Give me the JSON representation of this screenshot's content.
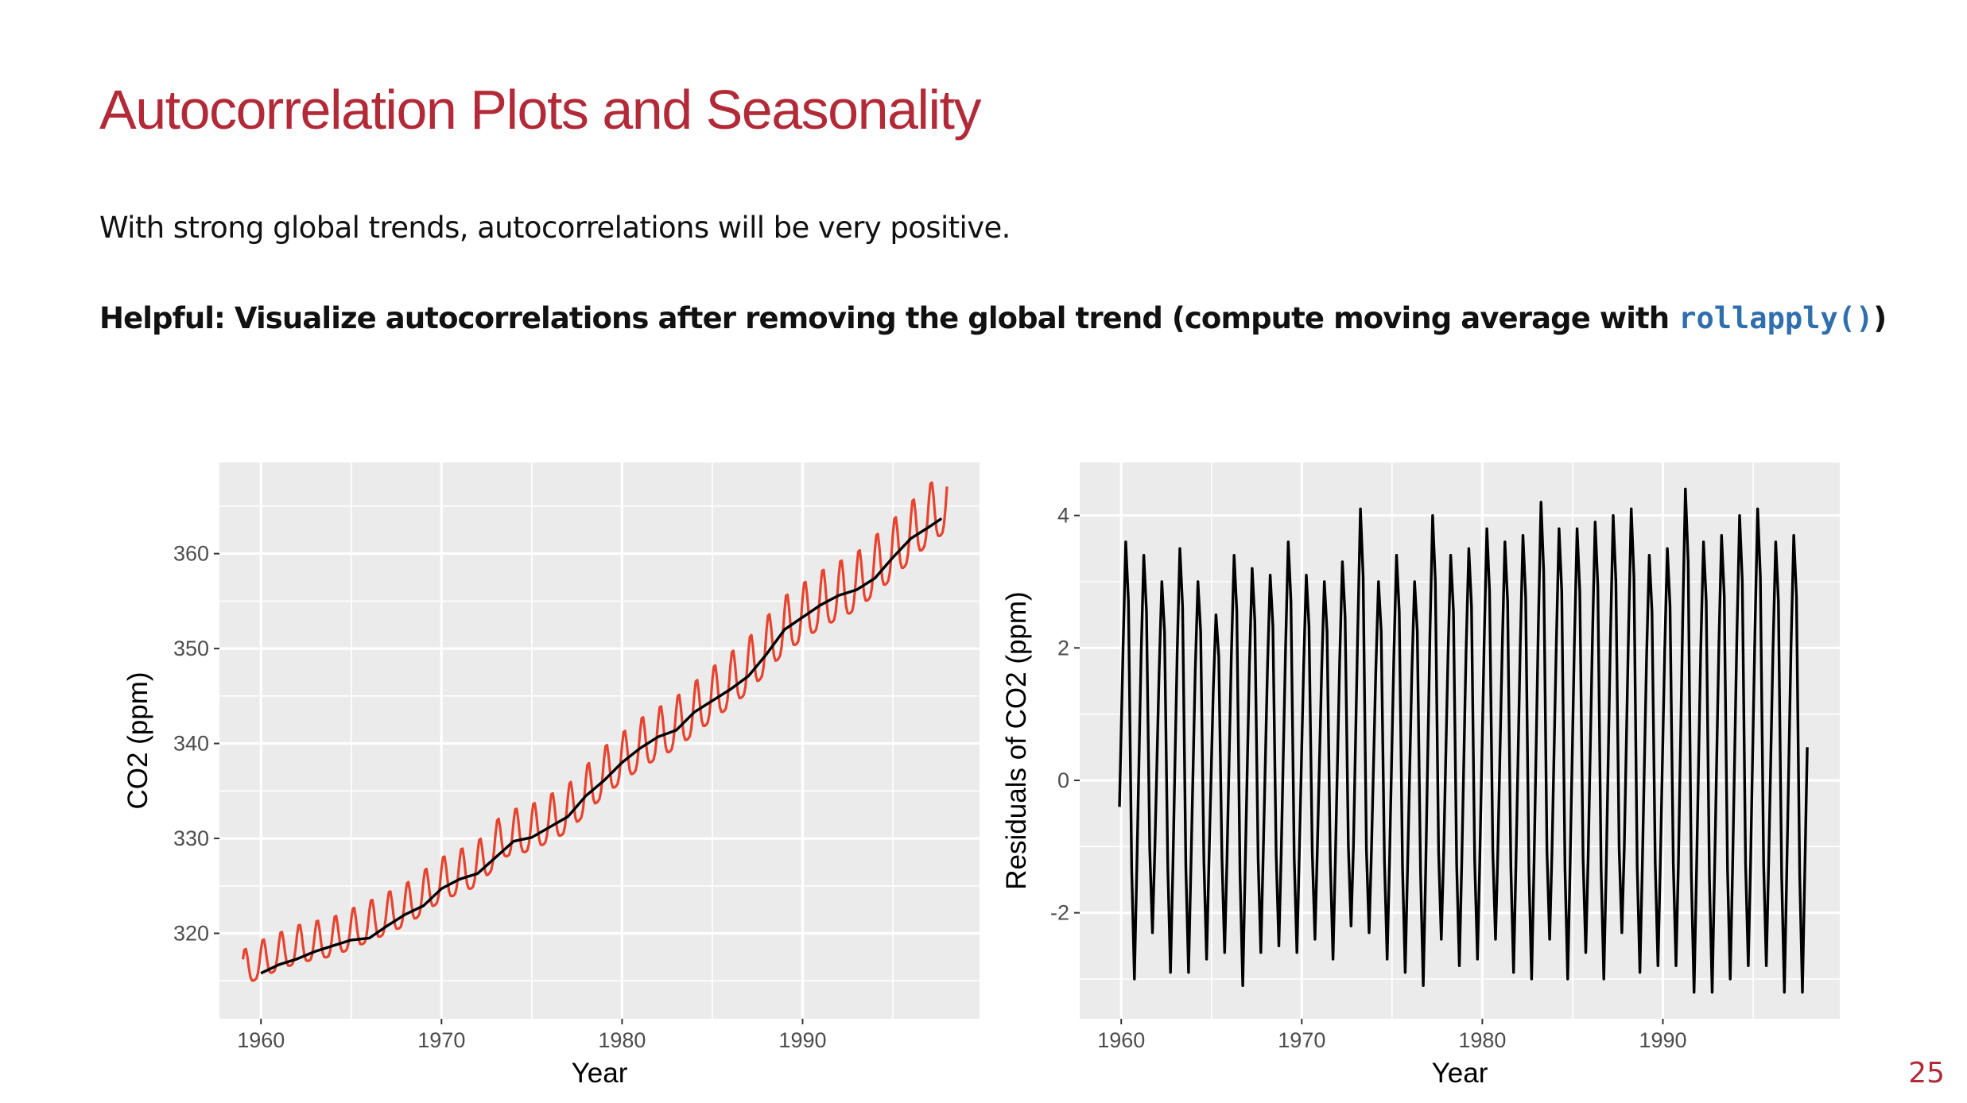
{
  "slide": {
    "title": "Autocorrelation Plots and Seasonality",
    "line1": "With strong global trends, autocorrelations will be very positive.",
    "helpful_text": "Helpful: Visualize autocorrelations after removing the global trend (compute moving average with ",
    "helpful_code": "rollapply()",
    "helpful_end": ")",
    "page_number": "25"
  },
  "colors": {
    "title": "#b22a38",
    "code": "#2f6fad",
    "panel_background": "#ebebeb",
    "raw_series": "#e8432e",
    "smooth_series": "#000000",
    "residual_series": "#000000"
  },
  "chart_data": [
    {
      "type": "line",
      "xlabel": "Year",
      "ylabel": "CO2 (ppm)",
      "xlim": [
        1957.7,
        1999.8
      ],
      "ylim": [
        311.0,
        369.6
      ],
      "x_ticks": [
        1960,
        1970,
        1980,
        1990
      ],
      "y_ticks": [
        320,
        330,
        340,
        350,
        360
      ],
      "grid": true,
      "legend": "none",
      "series": [
        {
          "role": "monthly",
          "color": "#e8432e",
          "x_start": 1959.0,
          "x_step": 0.0833333,
          "trend": [
            [
              1959,
              315.9
            ],
            [
              1960,
              316.9
            ],
            [
              1962,
              318.4
            ],
            [
              1964,
              319.2
            ],
            [
              1966,
              320.8
            ],
            [
              1968,
              322.5
            ],
            [
              1970,
              325.2
            ],
            [
              1972,
              326.8
            ],
            [
              1973.5,
              329.9
            ],
            [
              1975,
              330.6
            ],
            [
              1977,
              332.6
            ],
            [
              1979,
              336.5
            ],
            [
              1981,
              339.4
            ],
            [
              1983,
              341.6
            ],
            [
              1985,
              344.6
            ],
            [
              1987,
              347.6
            ],
            [
              1989,
              351.9
            ],
            [
              1991,
              354.5
            ],
            [
              1993,
              356.4
            ],
            [
              1995,
              359.8
            ],
            [
              1997,
              363.5
            ],
            [
              1998,
              364.8
            ]
          ],
          "seasonal_amplitude": [
            [
              1959,
              2.4
            ],
            [
              1970,
              2.9
            ],
            [
              1980,
              3.3
            ],
            [
              1990,
              3.8
            ],
            [
              1998,
              4.0
            ]
          ],
          "seasonal_phase_months": 1.5
        },
        {
          "role": "moving-average",
          "color": "#000000",
          "points": [
            [
              1960.0,
              315.8
            ],
            [
              1961,
              316.7
            ],
            [
              1962,
              317.3
            ],
            [
              1963,
              318.1
            ],
            [
              1964,
              318.7
            ],
            [
              1965,
              319.3
            ],
            [
              1966,
              319.5
            ],
            [
              1967,
              320.8
            ],
            [
              1968,
              322.0
            ],
            [
              1969,
              322.9
            ],
            [
              1970,
              324.7
            ],
            [
              1971,
              325.7
            ],
            [
              1972,
              326.3
            ],
            [
              1973,
              328.0
            ],
            [
              1974,
              329.7
            ],
            [
              1975,
              330.1
            ],
            [
              1976,
              331.2
            ],
            [
              1977,
              332.3
            ],
            [
              1978,
              334.5
            ],
            [
              1979,
              336.1
            ],
            [
              1980,
              338.0
            ],
            [
              1981,
              339.5
            ],
            [
              1982,
              340.7
            ],
            [
              1983,
              341.4
            ],
            [
              1984,
              343.3
            ],
            [
              1985,
              344.5
            ],
            [
              1986,
              345.7
            ],
            [
              1987,
              347.1
            ],
            [
              1988,
              349.4
            ],
            [
              1989,
              352.0
            ],
            [
              1990,
              353.3
            ],
            [
              1991,
              354.6
            ],
            [
              1992,
              355.6
            ],
            [
              1993,
              356.2
            ],
            [
              1994,
              357.4
            ],
            [
              1995,
              359.6
            ],
            [
              1996,
              361.6
            ],
            [
              1997,
              362.8
            ],
            [
              1997.7,
              363.7
            ]
          ]
        }
      ]
    },
    {
      "type": "line",
      "xlabel": "Year",
      "ylabel": "Residuals of CO2 (ppm)",
      "xlim": [
        1957.7,
        1999.8
      ],
      "ylim": [
        -3.6,
        4.8
      ],
      "x_ticks": [
        1960,
        1970,
        1980,
        1990
      ],
      "y_ticks": [
        -2,
        0,
        2,
        4
      ],
      "grid": true,
      "legend": "none",
      "series": [
        {
          "role": "residuals",
          "color": "#000000",
          "x_start": 1959.9,
          "x_end": 1998.0,
          "cycle_years": 1.0,
          "start_value": -0.4,
          "end_value": 0.5,
          "peaks": [
            3.6,
            3.4,
            3.0,
            3.5,
            3.0,
            2.5,
            3.4,
            3.2,
            3.1,
            3.6,
            3.1,
            3.0,
            3.3,
            4.1,
            3.0,
            3.4,
            3.0,
            4.0,
            3.4,
            3.5,
            3.8,
            3.6,
            3.7,
            4.2,
            3.8,
            3.8,
            3.9,
            4.0,
            4.1,
            3.4,
            3.5,
            4.4,
            3.6,
            3.7,
            4.0,
            4.1,
            3.6,
            3.7
          ],
          "troughs": [
            -3.0,
            -2.3,
            -2.9,
            -2.9,
            -2.7,
            -2.6,
            -3.1,
            -2.6,
            -2.5,
            -2.6,
            -2.4,
            -2.7,
            -2.2,
            -2.3,
            -2.7,
            -2.9,
            -3.1,
            -2.4,
            -2.8,
            -2.7,
            -2.4,
            -2.9,
            -3.0,
            -2.4,
            -3.0,
            -2.6,
            -3.0,
            -2.3,
            -2.9,
            -2.8,
            -2.8,
            -3.2,
            -3.2,
            -3.0,
            -2.8,
            -2.8,
            -3.2,
            -3.2
          ]
        }
      ]
    }
  ]
}
